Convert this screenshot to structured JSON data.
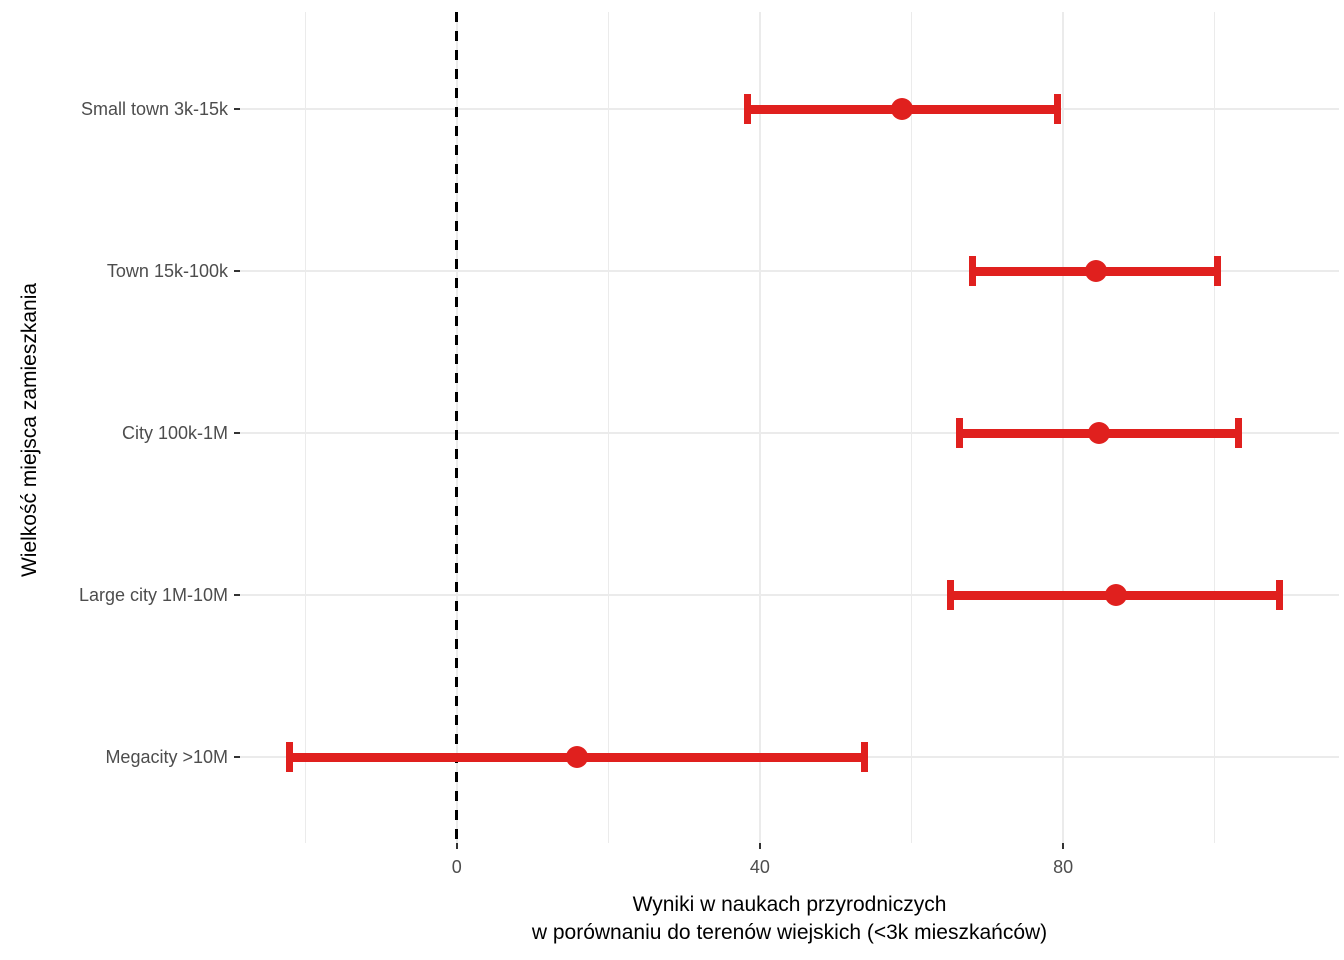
{
  "chart_data": {
    "type": "scatter",
    "subtype": "coefficient-dot-whisker-plot",
    "title": "",
    "ylabel": "Wielkość miejsca zamieszkania",
    "xlabel_line1": "Wyniki w naukach przyrodniczych",
    "xlabel_line2": "w porównaniu do terenów wiejskich (<3k mieszkańców)",
    "categories": [
      "Small town 3k-15k",
      "Town 15k-100k",
      "City 100k-1M",
      "Large city 1M-10M",
      "Megacity >10M"
    ],
    "points": [
      {
        "category": "Small town 3k-15k",
        "estimate": 58.8,
        "ci_low": 38.4,
        "ci_high": 79.2
      },
      {
        "category": "Town 15k-100k",
        "estimate": 84.3,
        "ci_low": 68.0,
        "ci_high": 100.4
      },
      {
        "category": "City 100k-1M",
        "estimate": 84.8,
        "ci_low": 66.3,
        "ci_high": 103.2
      },
      {
        "category": "Large city 1M-10M",
        "estimate": 87.0,
        "ci_low": 65.2,
        "ci_high": 108.6
      },
      {
        "category": "Megacity >10M",
        "estimate": 15.8,
        "ci_low": -22.1,
        "ci_high": 53.8
      }
    ],
    "x_ticks": [
      0,
      40,
      80
    ],
    "x_minor_gridlines": [
      -20,
      20,
      60,
      100
    ],
    "xlim": [
      -28.6,
      116.4
    ],
    "reference_line_x": 0,
    "grid": true,
    "legend": "none",
    "colors": {
      "series": "#E0201E",
      "reference_line": "#000000",
      "gridline": "#EBEBEB",
      "tick_label": "#4D4D4D",
      "axis_title": "#000000",
      "tick_mark": "#333333",
      "background": "#FFFFFF"
    }
  }
}
